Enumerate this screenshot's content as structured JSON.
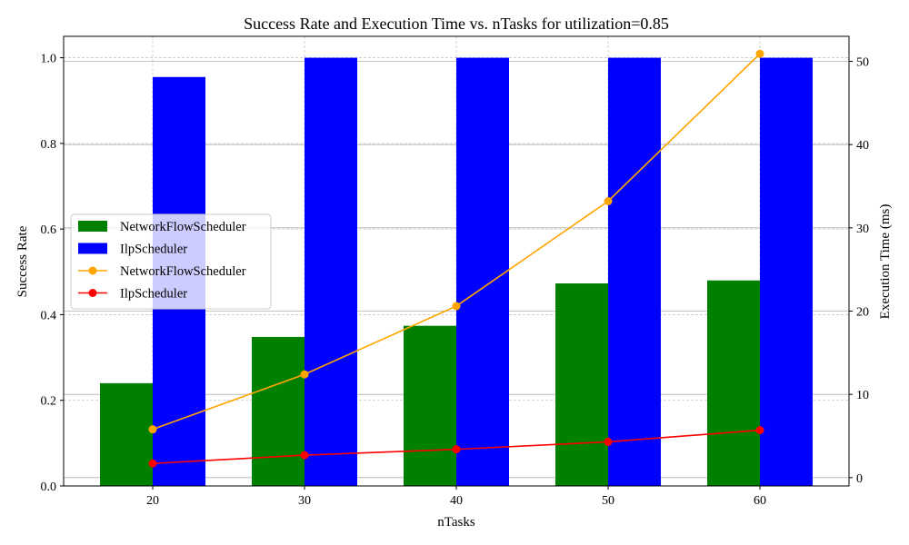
{
  "chart_data": {
    "type": "bar",
    "title": "Success Rate and Execution Time vs. nTasks for utilization=0.85",
    "xlabel": "nTasks",
    "ylabel": "Success Rate",
    "y2label": "Execution Time (ms)",
    "categories": [
      20,
      30,
      40,
      50,
      60
    ],
    "ylim": [
      0,
      1.05
    ],
    "y2lim": [
      -1,
      53
    ],
    "y_ticks": [
      "0.0",
      "0.2",
      "0.4",
      "0.6",
      "0.8",
      "1.0"
    ],
    "y2_ticks": [
      "0",
      "10",
      "20",
      "30",
      "40",
      "50"
    ],
    "grid": true,
    "legend_position": "center-left",
    "bar_series": [
      {
        "name": "NetworkFlowScheduler",
        "color": "#008000",
        "values": [
          0.24,
          0.348,
          0.374,
          0.473,
          0.48
        ]
      },
      {
        "name": "IlpScheduler",
        "color": "#0000ff",
        "values": [
          0.955,
          1.0,
          1.0,
          1.0,
          1.0
        ]
      }
    ],
    "line_series": [
      {
        "name": "NetworkFlowScheduler",
        "color": "#ffa500",
        "values": [
          5.8,
          12.4,
          20.6,
          33.2,
          50.9
        ]
      },
      {
        "name": "IlpScheduler",
        "color": "#ff0000",
        "values": [
          1.7,
          2.7,
          3.4,
          4.3,
          5.7
        ]
      }
    ]
  }
}
